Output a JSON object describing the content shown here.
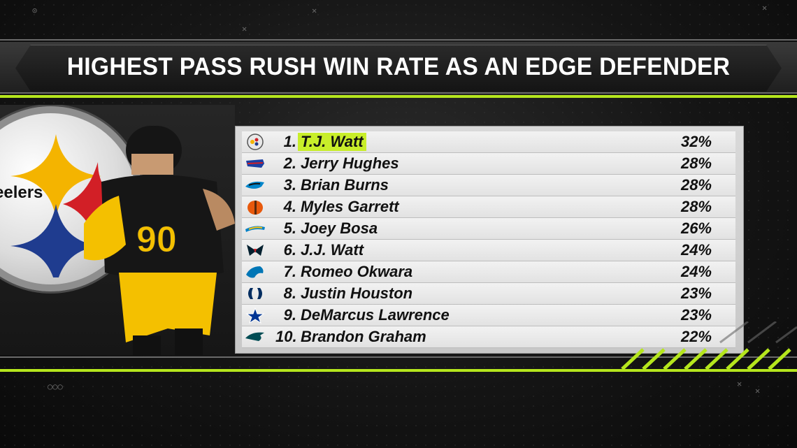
{
  "title": "HIGHEST PASS RUSH WIN RATE AS AN EDGE DEFENDER",
  "logo_text": "eelers",
  "jersey_number": "90",
  "colors": {
    "accent": "#b5e61d",
    "highlight": "#c8ee2a",
    "steelers_gold": "#f4b400"
  },
  "rows": [
    {
      "rank": "1.",
      "name": "T.J. Watt",
      "pct": "32%",
      "team_icon": "steelers-logo-icon"
    },
    {
      "rank": "2.",
      "name": "Jerry Hughes",
      "pct": "28%",
      "team_icon": "bills-logo-icon"
    },
    {
      "rank": "3.",
      "name": "Brian Burns",
      "pct": "28%",
      "team_icon": "panthers-logo-icon"
    },
    {
      "rank": "4.",
      "name": "Myles Garrett",
      "pct": "28%",
      "team_icon": "browns-logo-icon"
    },
    {
      "rank": "5.",
      "name": "Joey Bosa",
      "pct": "26%",
      "team_icon": "chargers-logo-icon"
    },
    {
      "rank": "6.",
      "name": "J.J. Watt",
      "pct": "24%",
      "team_icon": "texans-logo-icon"
    },
    {
      "rank": "7.",
      "name": "Romeo Okwara",
      "pct": "24%",
      "team_icon": "lions-logo-icon"
    },
    {
      "rank": "8.",
      "name": "Justin Houston",
      "pct": "23%",
      "team_icon": "colts-logo-icon"
    },
    {
      "rank": "9.",
      "name": "DeMarcus Lawrence",
      "pct": "23%",
      "team_icon": "cowboys-logo-icon"
    },
    {
      "rank": "10.",
      "name": "Brandon Graham",
      "pct": "22%",
      "team_icon": "eagles-logo-icon"
    }
  ]
}
